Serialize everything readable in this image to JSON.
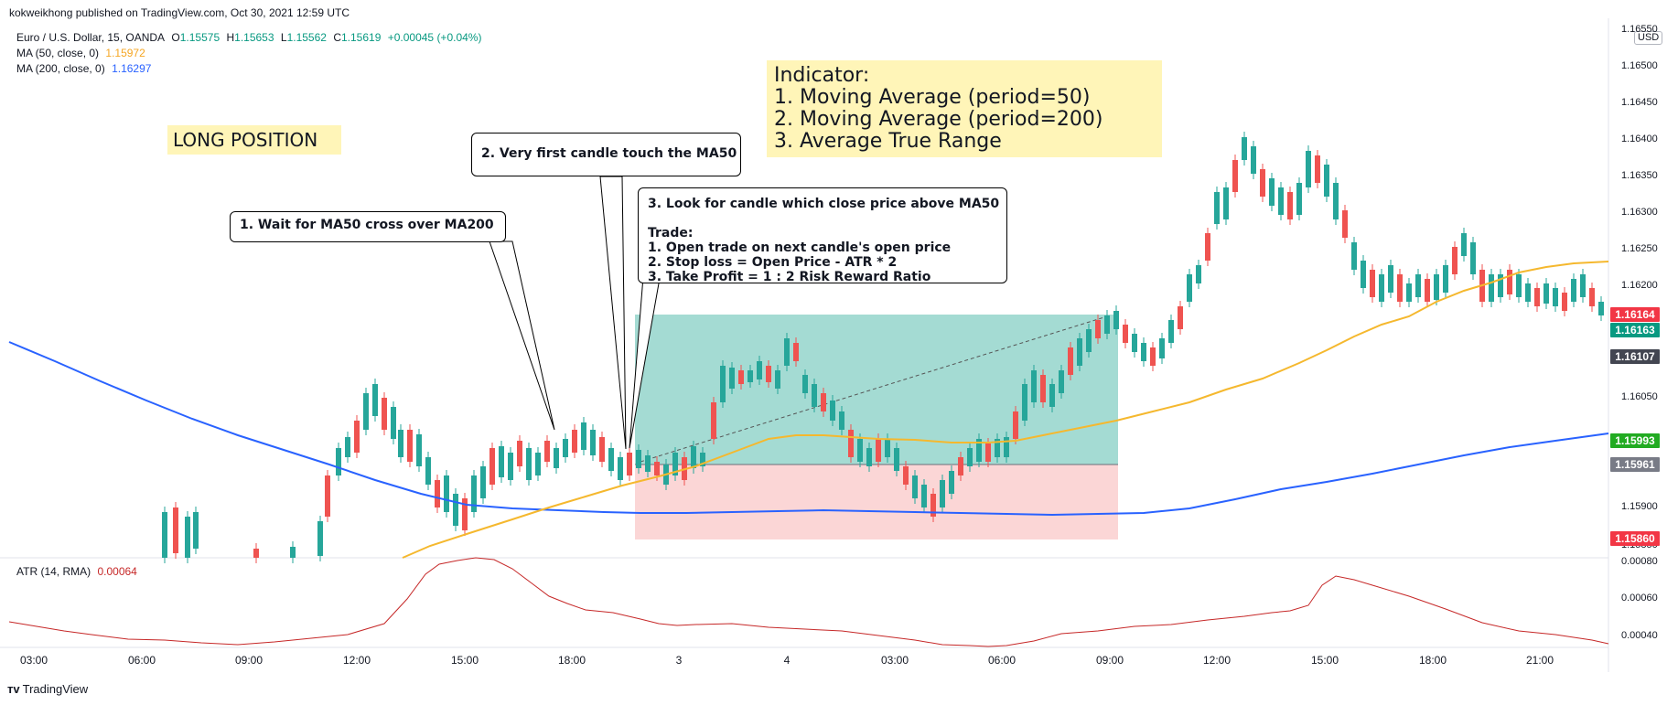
{
  "header": {
    "publish_line": "kokweikhong published on TradingView.com, Oct 30, 2021 12:59 UTC"
  },
  "legend": {
    "symbol": "Euro / U.S. Dollar, 15, OANDA",
    "o_label": "O",
    "o_value": "1.15575",
    "h_label": "H",
    "h_value": "1.15653",
    "l_label": "L",
    "l_value": "1.15562",
    "c_label": "C",
    "c_value": "1.15619",
    "change": "+0.00045 (+0.04%)",
    "ma50_label": "MA (50, close, 0)",
    "ma50_value": "1.15972",
    "ma200_label": "MA (200, close, 0)",
    "ma200_value": "1.16297",
    "atr_label": "ATR (14, RMA)",
    "atr_value": "0.00064"
  },
  "annotations": {
    "long_position": "LONG POSITION",
    "indicator_box": "Indicator:\n1. Moving Average (period=50)\n2. Moving Average (period=200)\n3. Average True Range",
    "callout1": "1. Wait for MA50 cross over MA200",
    "callout2": "2. Very first candle touch the MA50",
    "callout3": "3. Look for candle which close price above MA50\n\nTrade:\n1. Open trade on next candle's open price\n2. Stop loss = Open Price - ATR * 2\n3. Take Profit = 1 : 2 Risk Reward Ratio"
  },
  "price_axis": {
    "currency": "USD",
    "ticks": [
      "1.16550",
      "1.16500",
      "1.16450",
      "1.16400",
      "1.16350",
      "1.16300",
      "1.16250",
      "1.16200",
      "1.16050",
      "1.15900",
      "1.15850"
    ]
  },
  "price_tags": [
    {
      "value": "1.16164",
      "color": "#f23645"
    },
    {
      "value": "1.16163",
      "color": "#089981"
    },
    {
      "value": "1.16107",
      "color": "#434651"
    },
    {
      "value": "1.15993",
      "color": "#22ab22"
    },
    {
      "value": "1.15961",
      "color": "#787b86"
    },
    {
      "value": "1.15860",
      "color": "#f23645"
    }
  ],
  "atr_axis": {
    "ticks": [
      "0.00080",
      "0.00060",
      "0.00040"
    ]
  },
  "time_axis": {
    "labels": [
      "03:00",
      "06:00",
      "09:00",
      "12:00",
      "15:00",
      "18:00",
      "3",
      "4",
      "03:00",
      "06:00",
      "09:00",
      "12:00",
      "15:00",
      "18:00",
      "21:00"
    ]
  },
  "footer": {
    "brand": "TradingView"
  },
  "colors": {
    "up": "#26a69a",
    "down": "#ef5350",
    "ma50": "#f5b82e",
    "ma200": "#2962ff",
    "atr": "#c62828",
    "tp_zone": "#9fd9d1",
    "sl_zone": "#fbd6d6",
    "note_bg": "#fff5b8"
  }
}
